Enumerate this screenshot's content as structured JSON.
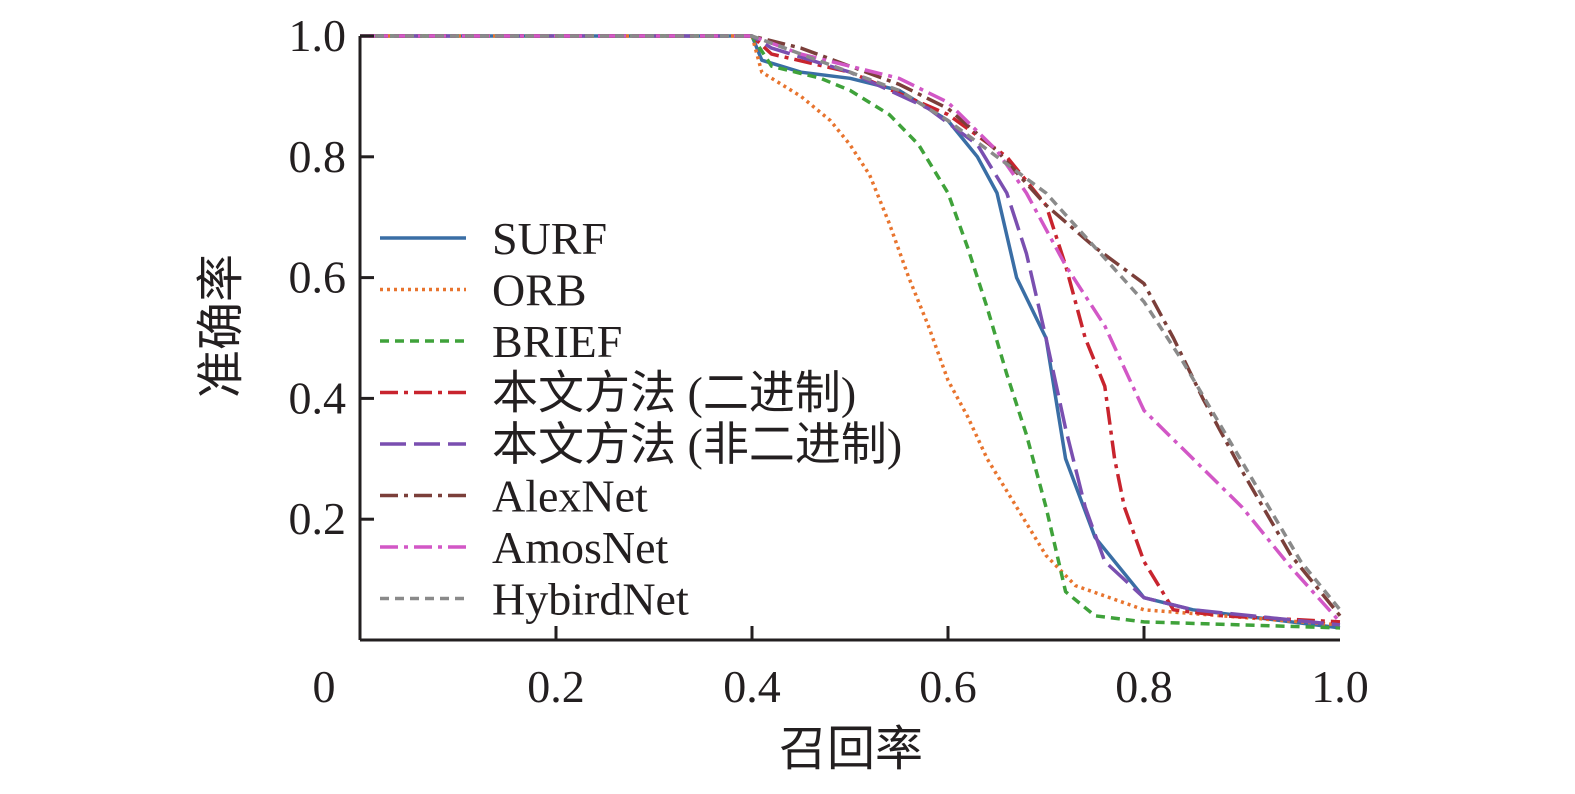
{
  "chart_data": {
    "type": "line",
    "title": "",
    "xlabel": "召回率",
    "ylabel": "准确率",
    "xlim": [
      0,
      1
    ],
    "ylim": [
      0,
      1
    ],
    "x_tick_labels": [
      "0",
      "0.2",
      "0.4",
      "0.6",
      "0.8",
      "1.0"
    ],
    "x_ticks": [
      0,
      0.2,
      0.4,
      0.6,
      0.8,
      1.0
    ],
    "y_tick_labels": [
      "0.2",
      "0.4",
      "0.6",
      "0.8",
      "1.0"
    ],
    "y_ticks": [
      0.2,
      0.4,
      0.6,
      0.8,
      1.0
    ],
    "grid": false,
    "legend_position": "left",
    "series": [
      {
        "name": "SURF",
        "color": "#3a6ea5",
        "dash": "solid",
        "points": [
          [
            0,
            1.0
          ],
          [
            0.4,
            1.0
          ],
          [
            0.41,
            0.96
          ],
          [
            0.45,
            0.94
          ],
          [
            0.5,
            0.93
          ],
          [
            0.55,
            0.91
          ],
          [
            0.6,
            0.86
          ],
          [
            0.63,
            0.8
          ],
          [
            0.65,
            0.74
          ],
          [
            0.67,
            0.6
          ],
          [
            0.7,
            0.5
          ],
          [
            0.72,
            0.3
          ],
          [
            0.75,
            0.17
          ],
          [
            0.8,
            0.07
          ],
          [
            0.85,
            0.05
          ],
          [
            1.0,
            0.02
          ]
        ]
      },
      {
        "name": "ORB",
        "color": "#e8742e",
        "dash": "dotted",
        "points": [
          [
            0,
            1.0
          ],
          [
            0.4,
            1.0
          ],
          [
            0.41,
            0.94
          ],
          [
            0.45,
            0.9
          ],
          [
            0.48,
            0.86
          ],
          [
            0.5,
            0.82
          ],
          [
            0.52,
            0.77
          ],
          [
            0.54,
            0.69
          ],
          [
            0.56,
            0.6
          ],
          [
            0.58,
            0.52
          ],
          [
            0.6,
            0.43
          ],
          [
            0.62,
            0.37
          ],
          [
            0.64,
            0.3
          ],
          [
            0.67,
            0.22
          ],
          [
            0.7,
            0.14
          ],
          [
            0.73,
            0.09
          ],
          [
            0.8,
            0.05
          ],
          [
            1.0,
            0.025
          ]
        ]
      },
      {
        "name": "BRIEF",
        "color": "#3fa23a",
        "dash": "dashed",
        "points": [
          [
            0,
            1.0
          ],
          [
            0.4,
            1.0
          ],
          [
            0.42,
            0.95
          ],
          [
            0.47,
            0.93
          ],
          [
            0.5,
            0.91
          ],
          [
            0.54,
            0.87
          ],
          [
            0.57,
            0.82
          ],
          [
            0.6,
            0.74
          ],
          [
            0.62,
            0.65
          ],
          [
            0.64,
            0.55
          ],
          [
            0.66,
            0.44
          ],
          [
            0.68,
            0.34
          ],
          [
            0.7,
            0.22
          ],
          [
            0.72,
            0.08
          ],
          [
            0.75,
            0.04
          ],
          [
            0.8,
            0.03
          ],
          [
            1.0,
            0.02
          ]
        ]
      },
      {
        "name": "本文方法 (二进制)",
        "color": "#c8242e",
        "dash": "dashdot",
        "points": [
          [
            0,
            1.0
          ],
          [
            0.4,
            1.0
          ],
          [
            0.42,
            0.97
          ],
          [
            0.5,
            0.94
          ],
          [
            0.6,
            0.87
          ],
          [
            0.66,
            0.8
          ],
          [
            0.7,
            0.72
          ],
          [
            0.72,
            0.62
          ],
          [
            0.74,
            0.5
          ],
          [
            0.76,
            0.42
          ],
          [
            0.77,
            0.3
          ],
          [
            0.78,
            0.22
          ],
          [
            0.8,
            0.13
          ],
          [
            0.83,
            0.05
          ],
          [
            0.88,
            0.04
          ],
          [
            1.0,
            0.03
          ]
        ]
      },
      {
        "name": "本文方法 (非二进制)",
        "color": "#7a4fb0",
        "dash": "longdash",
        "points": [
          [
            0,
            1.0
          ],
          [
            0.4,
            1.0
          ],
          [
            0.42,
            0.98
          ],
          [
            0.5,
            0.94
          ],
          [
            0.58,
            0.88
          ],
          [
            0.63,
            0.82
          ],
          [
            0.66,
            0.74
          ],
          [
            0.68,
            0.64
          ],
          [
            0.7,
            0.5
          ],
          [
            0.72,
            0.35
          ],
          [
            0.74,
            0.22
          ],
          [
            0.76,
            0.13
          ],
          [
            0.8,
            0.07
          ],
          [
            0.85,
            0.05
          ],
          [
            1.0,
            0.025
          ]
        ]
      },
      {
        "name": "AlexNet",
        "color": "#7b3f3a",
        "dash": "dashdot",
        "points": [
          [
            0,
            1.0
          ],
          [
            0.4,
            1.0
          ],
          [
            0.45,
            0.98
          ],
          [
            0.5,
            0.95
          ],
          [
            0.55,
            0.92
          ],
          [
            0.6,
            0.88
          ],
          [
            0.65,
            0.81
          ],
          [
            0.7,
            0.72
          ],
          [
            0.75,
            0.65
          ],
          [
            0.8,
            0.59
          ],
          [
            0.83,
            0.5
          ],
          [
            0.86,
            0.4
          ],
          [
            0.9,
            0.28
          ],
          [
            0.95,
            0.14
          ],
          [
            1.0,
            0.04
          ]
        ]
      },
      {
        "name": "AmosNet",
        "color": "#d257c6",
        "dash": "dashdot",
        "points": [
          [
            0,
            1.0
          ],
          [
            0.4,
            1.0
          ],
          [
            0.45,
            0.97
          ],
          [
            0.5,
            0.95
          ],
          [
            0.55,
            0.93
          ],
          [
            0.6,
            0.89
          ],
          [
            0.65,
            0.81
          ],
          [
            0.68,
            0.74
          ],
          [
            0.72,
            0.62
          ],
          [
            0.76,
            0.52
          ],
          [
            0.8,
            0.38
          ],
          [
            0.85,
            0.3
          ],
          [
            0.9,
            0.22
          ],
          [
            0.95,
            0.12
          ],
          [
            1.0,
            0.03
          ]
        ]
      },
      {
        "name": "HybirdNet",
        "color": "#8a8a8a",
        "dash": "dashed",
        "points": [
          [
            0,
            1.0
          ],
          [
            0.4,
            1.0
          ],
          [
            0.45,
            0.97
          ],
          [
            0.5,
            0.94
          ],
          [
            0.55,
            0.91
          ],
          [
            0.6,
            0.86
          ],
          [
            0.65,
            0.8
          ],
          [
            0.7,
            0.74
          ],
          [
            0.75,
            0.65
          ],
          [
            0.8,
            0.56
          ],
          [
            0.84,
            0.46
          ],
          [
            0.88,
            0.35
          ],
          [
            0.92,
            0.24
          ],
          [
            0.96,
            0.13
          ],
          [
            1.0,
            0.05
          ]
        ]
      }
    ]
  }
}
